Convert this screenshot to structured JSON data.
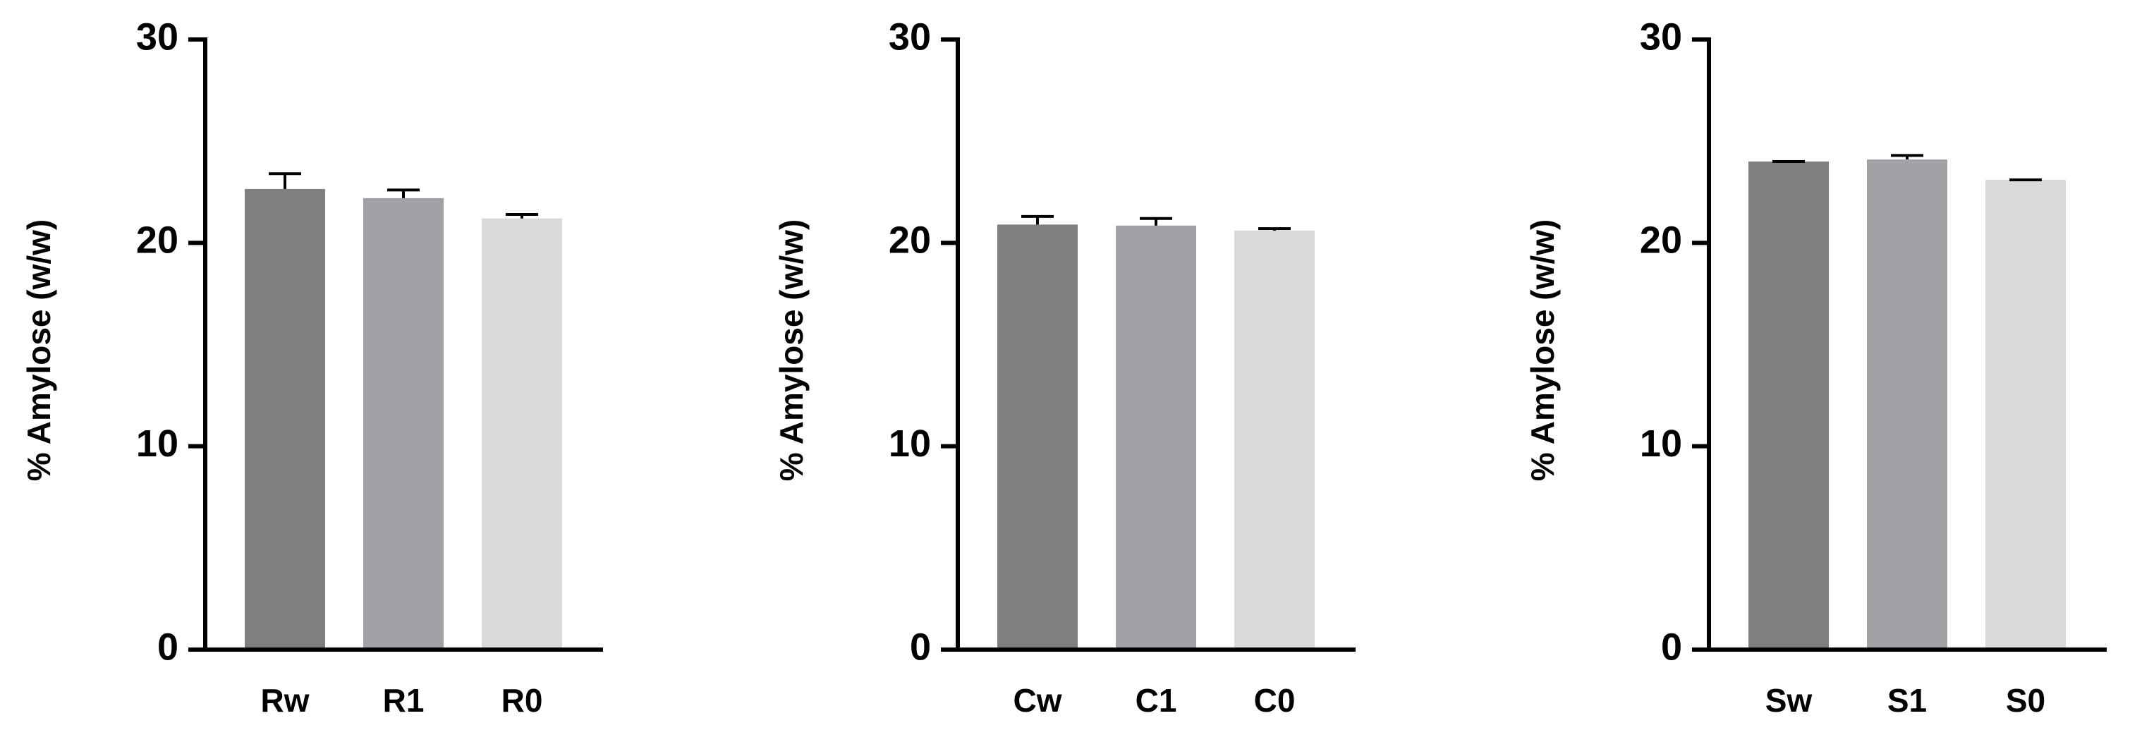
{
  "chart_data": [
    {
      "type": "bar",
      "ylabel": "% Amylose (w/w)",
      "categories": [
        "Rw",
        "R1",
        "R0"
      ],
      "values": [
        22.65,
        22.2,
        21.2
      ],
      "errors": [
        0.75,
        0.4,
        0.2
      ],
      "colors": [
        "#7f7f7f",
        "#a2a1a5",
        "#d9d9d9"
      ],
      "ylim": [
        0,
        30
      ],
      "yticks": [
        0,
        10,
        20,
        30
      ]
    },
    {
      "type": "bar",
      "ylabel": "% Amylose (w/w)",
      "categories": [
        "Cw",
        "C1",
        "C0"
      ],
      "values": [
        20.9,
        20.85,
        20.6
      ],
      "errors": [
        0.4,
        0.35,
        0.1
      ],
      "colors": [
        "#7f7f7f",
        "#a2a1a5",
        "#d9d9d9"
      ],
      "ylim": [
        0,
        30
      ],
      "yticks": [
        0,
        10,
        20,
        30
      ]
    },
    {
      "type": "bar",
      "ylabel": "% Amylose (w/w)",
      "categories": [
        "Sw",
        "S1",
        "S0"
      ],
      "values": [
        24.0,
        24.1,
        23.1
      ],
      "errors": [
        0,
        0.2,
        0
      ],
      "colors": [
        "#7f7f7f",
        "#a2a1a5",
        "#d9d9d9"
      ],
      "ylim": [
        0,
        30
      ],
      "yticks": [
        0,
        10,
        20,
        30
      ]
    }
  ]
}
